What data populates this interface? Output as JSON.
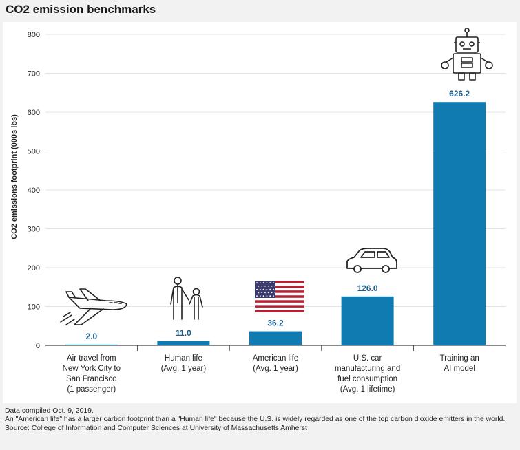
{
  "title": "CO2 emission benchmarks",
  "chart_data": {
    "type": "bar",
    "ylabel": "CO2 emissions footprint (000s lbs)",
    "ylim": [
      0,
      800
    ],
    "yticks": [
      0,
      100,
      200,
      300,
      400,
      500,
      600,
      700,
      800
    ],
    "grid": true,
    "bar_color": "#0f7bb0",
    "label_color": "#1f5f8b",
    "categories": [
      [
        "Air travel from",
        "New York City to",
        "San Francisco",
        "(1 passenger)"
      ],
      [
        "Human life",
        "(Avg. 1 year)"
      ],
      [
        "American life",
        "(Avg. 1 year)"
      ],
      [
        "U.S. car",
        "manufacturing and",
        "fuel consumption",
        "(Avg. 1 lifetime)"
      ],
      [
        "Training an",
        "AI model"
      ]
    ],
    "values": [
      2.0,
      11.0,
      36.2,
      126.0,
      626.2
    ],
    "data_labels": [
      "2.0",
      "11.0",
      "36.2",
      "126.0",
      "626.2"
    ],
    "icons": [
      "airplane-icon",
      "people-icon",
      "us-flag-icon",
      "car-icon",
      "robot-icon"
    ]
  },
  "notes": [
    "Data compiled Oct. 9, 2019.",
    "An \"American life\" has a larger carbon footprint than a \"Human life\" because the U.S. is widely regarded as one of the top carbon dioxide emitters in the world.",
    "Source: College of Information and Computer Sciences at University of Massachusetts Amherst"
  ]
}
